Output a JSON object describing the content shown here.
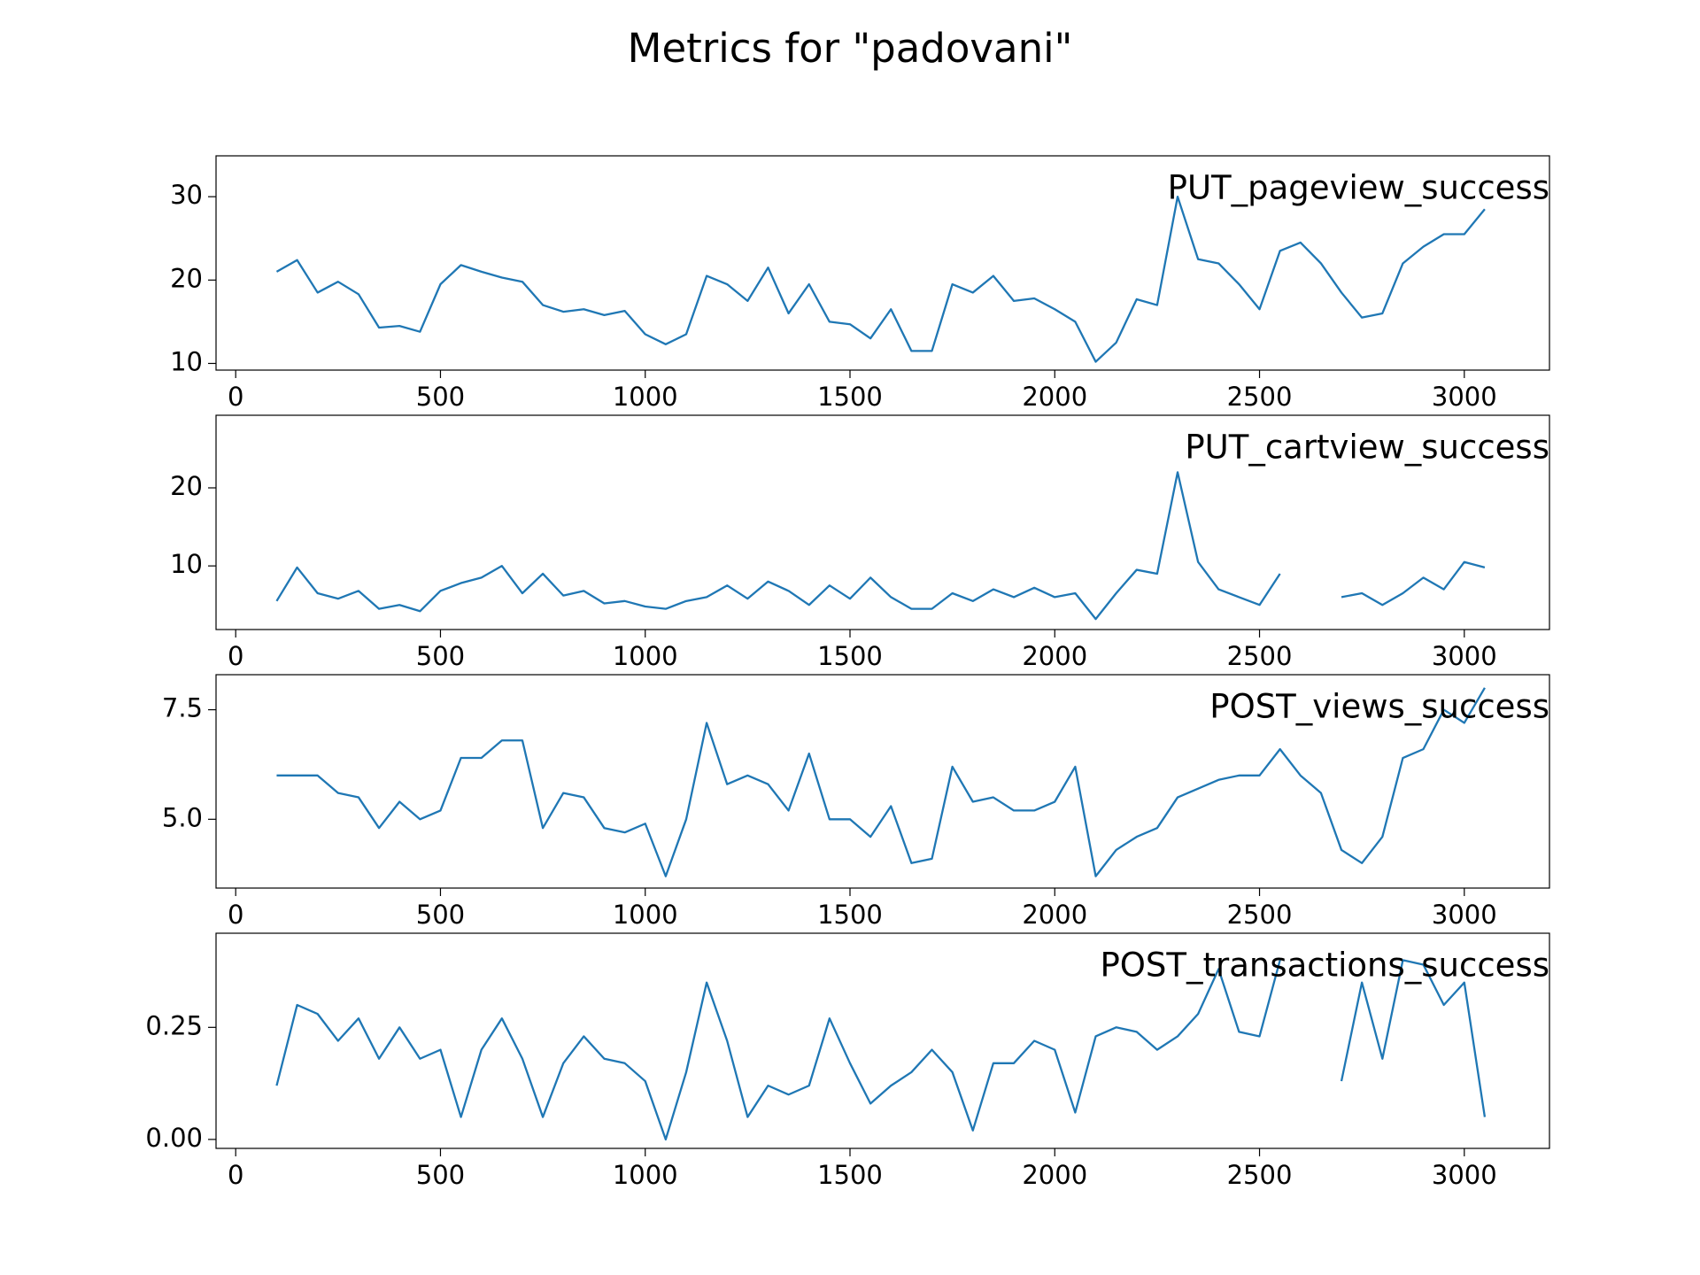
{
  "title": "Metrics for \"padovani\"",
  "chart_data": [
    {
      "type": "line",
      "x": [
        100,
        150,
        200,
        250,
        300,
        350,
        400,
        450,
        500,
        550,
        600,
        650,
        700,
        750,
        800,
        850,
        900,
        950,
        1000,
        1050,
        1100,
        1150,
        1200,
        1250,
        1300,
        1350,
        1400,
        1450,
        1500,
        1550,
        1600,
        1650,
        1700,
        1750,
        1800,
        1850,
        1900,
        1950,
        2000,
        2050,
        2100,
        2150,
        2200,
        2250,
        2300,
        2350,
        2400,
        2450,
        2500,
        2550,
        2600,
        2650,
        2700,
        2750,
        2800,
        2850,
        2900,
        2950,
        3000,
        3050
      ],
      "series": [
        {
          "name": "PUT_pageview_success",
          "color": "#1f77b4",
          "values": [
            21,
            22.4,
            18.5,
            19.8,
            18.3,
            14.3,
            14.5,
            13.8,
            19.5,
            21.8,
            21,
            20.3,
            19.8,
            17,
            16.2,
            16.5,
            15.8,
            16.3,
            13.5,
            12.3,
            13.5,
            20.5,
            19.5,
            17.5,
            21.5,
            16,
            19.5,
            15,
            14.7,
            13,
            16.5,
            11.5,
            11.5,
            19.5,
            18.5,
            20.5,
            17.5,
            17.8,
            16.5,
            15,
            10.2,
            12.5,
            17.7,
            17,
            30,
            22.5,
            22,
            19.5,
            16.5,
            23.5,
            24.5,
            22,
            18.5,
            15.5,
            16,
            22,
            24,
            25.5,
            25.5,
            28.5
          ]
        }
      ],
      "xlim": [
        -48,
        3208
      ],
      "ylim": [
        9.2,
        34.9
      ],
      "xticks": [
        0,
        500,
        1000,
        1500,
        2000,
        2500,
        3000
      ],
      "yticks": [
        10,
        20,
        30
      ]
    },
    {
      "type": "line",
      "x": [
        100,
        150,
        200,
        250,
        300,
        350,
        400,
        450,
        500,
        550,
        600,
        650,
        700,
        750,
        800,
        850,
        900,
        950,
        1000,
        1050,
        1100,
        1150,
        1200,
        1250,
        1300,
        1350,
        1400,
        1450,
        1500,
        1550,
        1600,
        1650,
        1700,
        1750,
        1800,
        1850,
        1900,
        1950,
        2000,
        2050,
        2100,
        2150,
        2200,
        2250,
        2300,
        2350,
        2400,
        2450,
        2500,
        2550,
        2600,
        2650,
        2700,
        2750,
        2800,
        2850,
        2900,
        2950,
        3000,
        3050
      ],
      "series": [
        {
          "name": "PUT_cartview_success",
          "color": "#1f77b4",
          "values": [
            5.5,
            9.8,
            6.5,
            5.8,
            6.8,
            4.5,
            5,
            4.2,
            6.8,
            7.8,
            8.5,
            10,
            6.5,
            9,
            6.2,
            6.8,
            5.2,
            5.5,
            4.8,
            4.5,
            5.5,
            6,
            7.5,
            5.8,
            8,
            6.8,
            5,
            7.5,
            5.8,
            8.5,
            6,
            4.5,
            4.5,
            6.5,
            5.5,
            7,
            6,
            7.2,
            6,
            6.5,
            3.2,
            6.5,
            9.5,
            9,
            22,
            10.5,
            7,
            6,
            5,
            9,
            null,
            null,
            6,
            6.5,
            5,
            6.5,
            8.5,
            7,
            10.5,
            9.8
          ]
        }
      ],
      "xlim": [
        -48,
        3208
      ],
      "ylim": [
        1.85,
        29.3
      ],
      "xticks": [
        0,
        500,
        1000,
        1500,
        2000,
        2500,
        3000
      ],
      "yticks": [
        10,
        20
      ]
    },
    {
      "type": "line",
      "x": [
        100,
        150,
        200,
        250,
        300,
        350,
        400,
        450,
        500,
        550,
        600,
        650,
        700,
        750,
        800,
        850,
        900,
        950,
        1000,
        1050,
        1100,
        1150,
        1200,
        1250,
        1300,
        1350,
        1400,
        1450,
        1500,
        1550,
        1600,
        1650,
        1700,
        1750,
        1800,
        1850,
        1900,
        1950,
        2000,
        2050,
        2100,
        2150,
        2200,
        2250,
        2300,
        2350,
        2400,
        2450,
        2500,
        2550,
        2600,
        2650,
        2700,
        2750,
        2800,
        2850,
        2900,
        2950,
        3000,
        3050
      ],
      "series": [
        {
          "name": "POST_views_success",
          "color": "#1f77b4",
          "values": [
            6,
            6,
            6,
            5.6,
            5.5,
            4.8,
            5.4,
            5,
            5.2,
            6.4,
            6.4,
            6.8,
            6.8,
            4.8,
            5.6,
            5.5,
            4.8,
            4.7,
            4.9,
            3.7,
            5,
            7.2,
            5.8,
            6,
            5.8,
            5.2,
            6.5,
            5,
            5,
            4.6,
            5.3,
            4,
            4.1,
            6.2,
            5.4,
            5.5,
            5.2,
            5.2,
            5.4,
            6.2,
            3.7,
            4.3,
            4.6,
            4.8,
            5.5,
            5.7,
            5.9,
            6,
            6,
            6.6,
            6,
            5.6,
            4.3,
            4,
            4.6,
            6.4,
            6.6,
            7.5,
            7.2,
            8
          ]
        }
      ],
      "xlim": [
        -48,
        3208
      ],
      "ylim": [
        3.43,
        8.3
      ],
      "xticks": [
        0,
        500,
        1000,
        1500,
        2000,
        2500,
        3000
      ],
      "yticks": [
        {
          "value": 5,
          "label": "5.0"
        },
        7.5
      ]
    },
    {
      "type": "line",
      "x": [
        100,
        150,
        200,
        250,
        300,
        350,
        400,
        450,
        500,
        550,
        600,
        650,
        700,
        750,
        800,
        850,
        900,
        950,
        1000,
        1050,
        1100,
        1150,
        1200,
        1250,
        1300,
        1350,
        1400,
        1450,
        1500,
        1550,
        1600,
        1650,
        1700,
        1750,
        1800,
        1850,
        1900,
        1950,
        2000,
        2050,
        2100,
        2150,
        2200,
        2250,
        2300,
        2350,
        2400,
        2450,
        2500,
        2550,
        2600,
        2650,
        2700,
        2750,
        2800,
        2850,
        2900,
        2950,
        3000,
        3050
      ],
      "series": [
        {
          "name": "POST_transactions_success",
          "color": "#1f77b4",
          "values": [
            0.12,
            0.3,
            0.28,
            0.22,
            0.27,
            0.18,
            0.25,
            0.18,
            0.2,
            0.05,
            0.2,
            0.27,
            0.18,
            0.05,
            0.17,
            0.23,
            0.18,
            0.17,
            0.13,
            0,
            0.15,
            0.35,
            0.22,
            0.05,
            0.12,
            0.1,
            0.12,
            0.27,
            0.17,
            0.08,
            0.12,
            0.15,
            0.2,
            0.15,
            0.02,
            0.17,
            0.17,
            0.22,
            0.2,
            0.06,
            0.23,
            0.25,
            0.24,
            0.2,
            0.23,
            0.28,
            0.38,
            0.24,
            0.23,
            0.4,
            null,
            null,
            0.13,
            0.35,
            0.18,
            0.4,
            0.39,
            0.3,
            0.35,
            0.05
          ]
        }
      ],
      "xlim": [
        -48,
        3208
      ],
      "ylim": [
        -0.02,
        0.46
      ],
      "xticks": [
        0,
        500,
        1000,
        1500,
        2000,
        2500,
        3000
      ],
      "yticks": [
        {
          "value": 0,
          "label": "0.00"
        },
        0.25
      ]
    }
  ]
}
